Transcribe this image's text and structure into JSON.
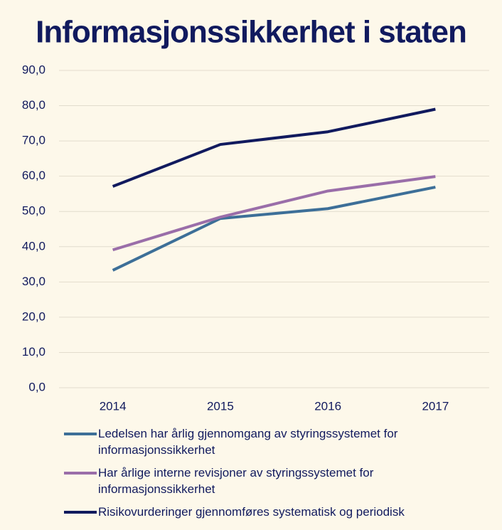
{
  "chart_data": {
    "type": "line",
    "title": "Informasjonssikkerhet i staten",
    "categories": [
      "2014",
      "2015",
      "2016",
      "2017"
    ],
    "series": [
      {
        "name": "Ledelsen har årlig gjennomgang av styringssystemet for informasjonssikkerhet",
        "color": "#3d6f98",
        "values": [
          33.3,
          48.0,
          50.8,
          56.9
        ]
      },
      {
        "name": "Har årlige interne revisjoner av styringssystemet for informasjonssikkerhet",
        "color": "#9a6ea9",
        "values": [
          39.1,
          48.4,
          55.8,
          59.9
        ]
      },
      {
        "name": "Risikovurderinger gjennomføres systematisk og periodisk",
        "color": "#111a5e",
        "values": [
          57.1,
          69.0,
          72.6,
          79.0
        ]
      }
    ],
    "ylim": [
      0,
      90
    ],
    "yticks": [
      {
        "value": 0,
        "label": "0,0"
      },
      {
        "value": 10,
        "label": "10,0"
      },
      {
        "value": 20,
        "label": "20,0"
      },
      {
        "value": 30,
        "label": "30,0"
      },
      {
        "value": 40,
        "label": "40,0"
      },
      {
        "value": 50,
        "label": "50,0"
      },
      {
        "value": 60,
        "label": "60,0"
      },
      {
        "value": 70,
        "label": "70,0"
      },
      {
        "value": 80,
        "label": "80,0"
      },
      {
        "value": 90,
        "label": "90,0"
      }
    ],
    "grid": true,
    "legend": "bottom"
  }
}
